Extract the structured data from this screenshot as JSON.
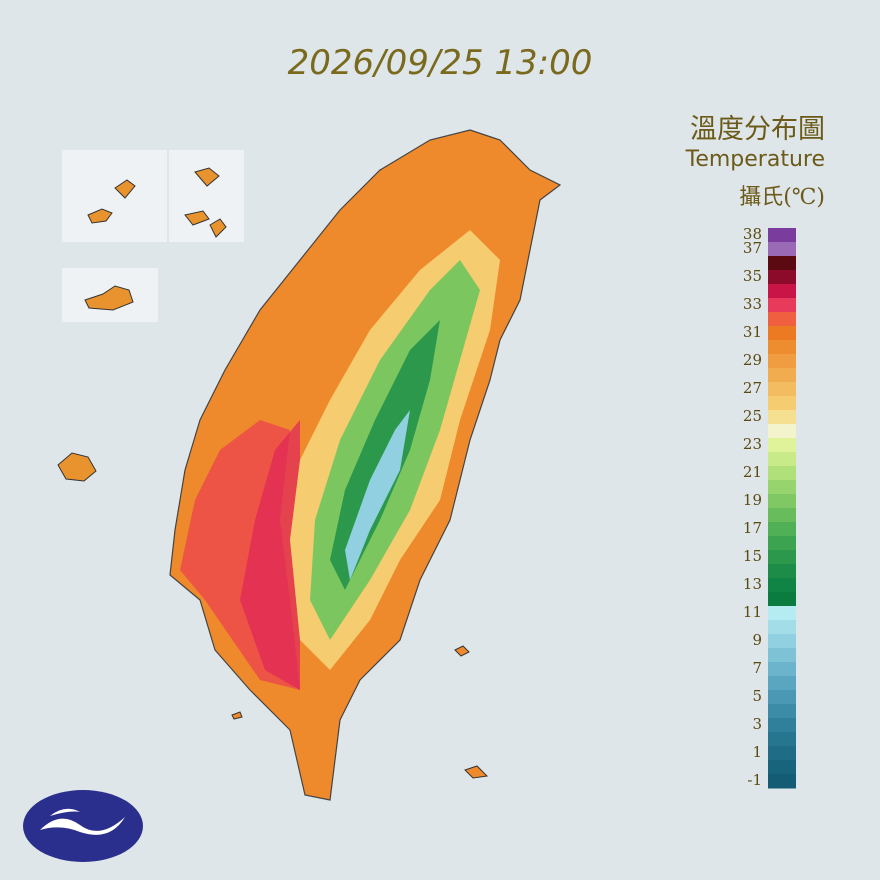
{
  "timestamp": "2026/09/25 13:00",
  "title": "溫度分布圖",
  "subtitle": "Temperature",
  "unit": "攝氏(℃)",
  "legend": {
    "ticks": [
      38,
      37,
      35,
      33,
      31,
      29,
      27,
      25,
      23,
      21,
      19,
      17,
      15,
      13,
      11,
      9,
      7,
      5,
      3,
      1,
      -1
    ],
    "levels": [
      {
        "value": 38,
        "color": "#7a3d9e"
      },
      {
        "value": 37,
        "color": "#9a6ab6"
      },
      {
        "value": 36,
        "color": "#5c0a12"
      },
      {
        "value": 35,
        "color": "#8c0a2a"
      },
      {
        "value": 34,
        "color": "#c81446"
      },
      {
        "value": 33,
        "color": "#e83a5a"
      },
      {
        "value": 32,
        "color": "#f06040"
      },
      {
        "value": 31,
        "color": "#ec7a22"
      },
      {
        "value": 30,
        "color": "#ee8c30"
      },
      {
        "value": 29,
        "color": "#f09c40"
      },
      {
        "value": 28,
        "color": "#f2ac50"
      },
      {
        "value": 27,
        "color": "#f4bc60"
      },
      {
        "value": 26,
        "color": "#f6cc70"
      },
      {
        "value": 25,
        "color": "#f4e090"
      },
      {
        "value": 24,
        "color": "#f4f4cc"
      },
      {
        "value": 23,
        "color": "#e0f29a"
      },
      {
        "value": 22,
        "color": "#c8ea88"
      },
      {
        "value": 21,
        "color": "#b0e07a"
      },
      {
        "value": 20,
        "color": "#98d46e"
      },
      {
        "value": 19,
        "color": "#80c864"
      },
      {
        "value": 18,
        "color": "#68bc5c"
      },
      {
        "value": 17,
        "color": "#50b056"
      },
      {
        "value": 16,
        "color": "#3ca450"
      },
      {
        "value": 15,
        "color": "#2c984c"
      },
      {
        "value": 14,
        "color": "#1c8c48"
      },
      {
        "value": 13,
        "color": "#108444"
      },
      {
        "value": 12,
        "color": "#0a7c40"
      },
      {
        "value": 11,
        "color": "#b4ecf2"
      },
      {
        "value": 10,
        "color": "#a2dde8"
      },
      {
        "value": 9,
        "color": "#90d0e0"
      },
      {
        "value": 8,
        "color": "#7ec2d6"
      },
      {
        "value": 7,
        "color": "#6cb4cc"
      },
      {
        "value": 6,
        "color": "#5aa6c0"
      },
      {
        "value": 5,
        "color": "#4a98b4"
      },
      {
        "value": 4,
        "color": "#3c8ca8"
      },
      {
        "value": 3,
        "color": "#30809c"
      },
      {
        "value": 2,
        "color": "#267690"
      },
      {
        "value": 1,
        "color": "#1e6c86"
      },
      {
        "value": 0,
        "color": "#18647c"
      },
      {
        "value": -1,
        "color": "#145c74"
      }
    ]
  }
}
